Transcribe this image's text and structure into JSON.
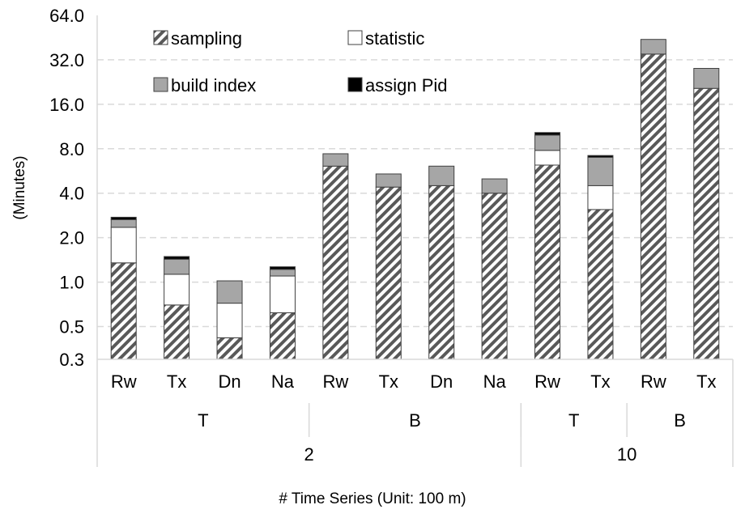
{
  "chart_data": {
    "type": "bar",
    "stacked": true,
    "log_scale_y": true,
    "ylabel": "(Minutes)",
    "xlabel": "# Time Series (Unit: 100 m)",
    "ylim": [
      0.3,
      64.0
    ],
    "y_ticks": [
      "0.3",
      "0.5",
      "1.0",
      "2.0",
      "4.0",
      "8.0",
      "16.0",
      "32.0",
      "64.0"
    ],
    "grid": "horizontal dashed",
    "legend_placement": "top-left, inside plot",
    "categories": [
      "Rw",
      "Tx",
      "Dn",
      "Na",
      "Rw",
      "Tx",
      "Dn",
      "Na",
      "Rw",
      "Tx",
      "Rw",
      "Tx"
    ],
    "group_level1": [
      {
        "label": "T",
        "span": 4
      },
      {
        "label": "B",
        "span": 4
      },
      {
        "label": "T",
        "span": 2
      },
      {
        "label": "B",
        "span": 2
      }
    ],
    "group_level2": [
      {
        "label": "2",
        "span": 8
      },
      {
        "label": "10",
        "span": 4
      }
    ],
    "series": [
      {
        "name": "sampling",
        "values": [
          1.35,
          0.7,
          0.42,
          0.62,
          6.1,
          4.4,
          4.5,
          4.0,
          6.2,
          3.1,
          35.0,
          20.5
        ]
      },
      {
        "name": "statistic",
        "values": [
          1.0,
          0.43,
          0.3,
          0.48,
          0,
          0,
          0,
          0,
          1.6,
          1.4,
          0,
          0
        ]
      },
      {
        "name": "build index",
        "values": [
          0.3,
          0.3,
          0.3,
          0.12,
          1.3,
          1.0,
          1.6,
          1.0,
          2.1,
          2.5,
          9.0,
          7.5
        ]
      },
      {
        "name": "assign Pid",
        "values": [
          0.1,
          0.06,
          0,
          0.05,
          0,
          0,
          0,
          0,
          0.4,
          0.2,
          0,
          0
        ]
      }
    ],
    "colors": {
      "sampling": "#595959",
      "statistic": "#ffffff",
      "build index": "#a6a6a6",
      "assign Pid": "#000000",
      "grid": "#d9d9d9"
    }
  }
}
